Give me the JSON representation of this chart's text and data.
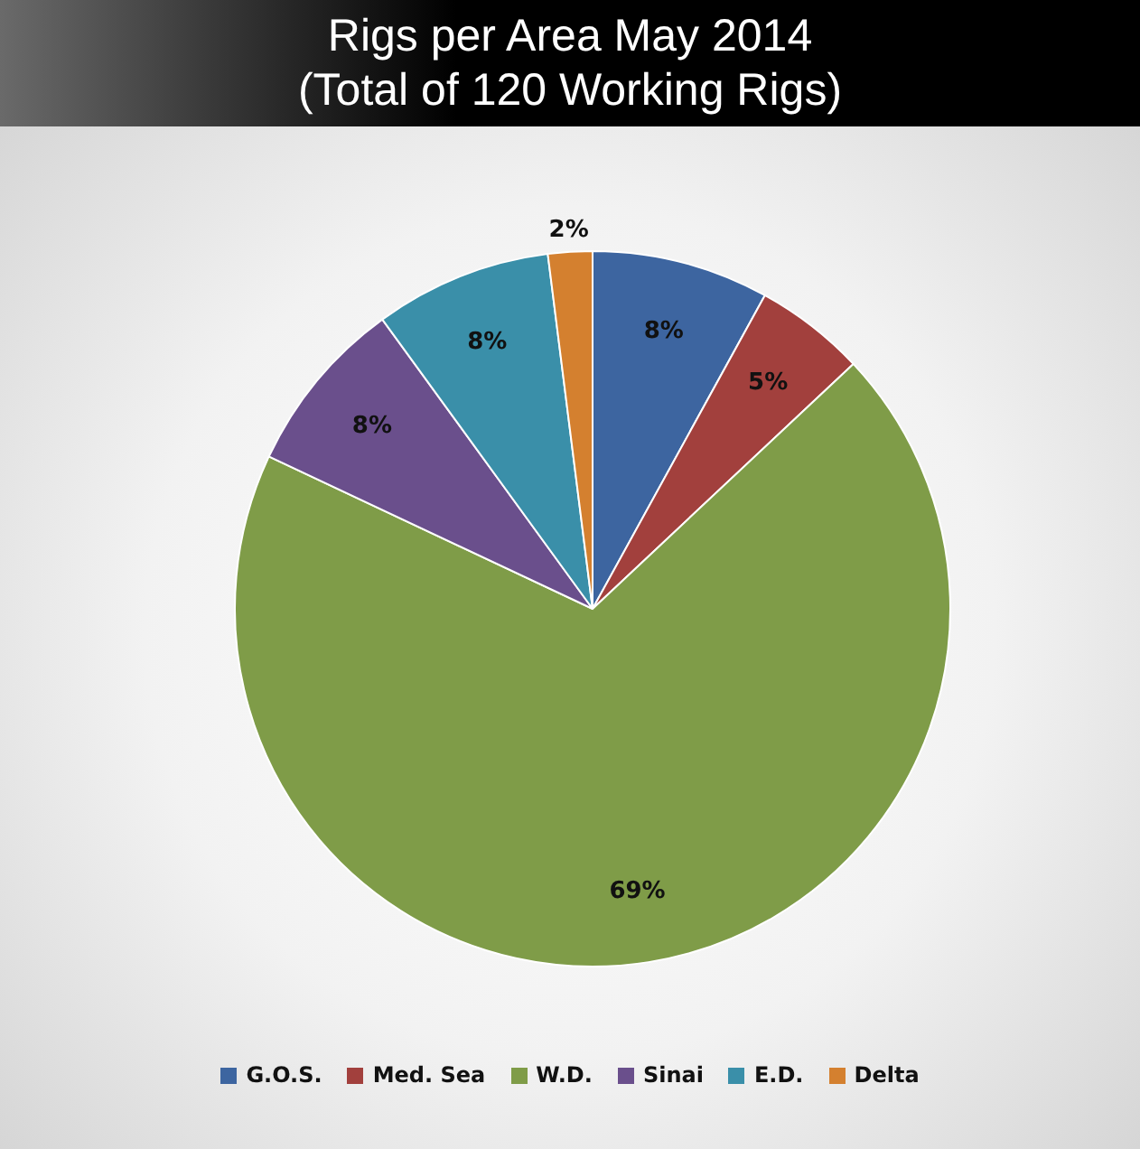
{
  "chart_data": {
    "type": "pie",
    "title": "Rigs per Area May 2014",
    "subtitle": "(Total of 120 Working Rigs)",
    "categories": [
      "G.O.S.",
      "Med. Sea",
      "W.D.",
      "Sinai",
      "E.D.",
      "Delta"
    ],
    "values": [
      8,
      5,
      69,
      8,
      8,
      2
    ],
    "value_labels": [
      "8%",
      "5%",
      "69%",
      "8%",
      "8%",
      "2%"
    ],
    "colors": [
      "#3d65a0",
      "#a2403d",
      "#7f9c48",
      "#6a4f8c",
      "#3a8fa9",
      "#d4802f"
    ],
    "legend": "bottom"
  }
}
